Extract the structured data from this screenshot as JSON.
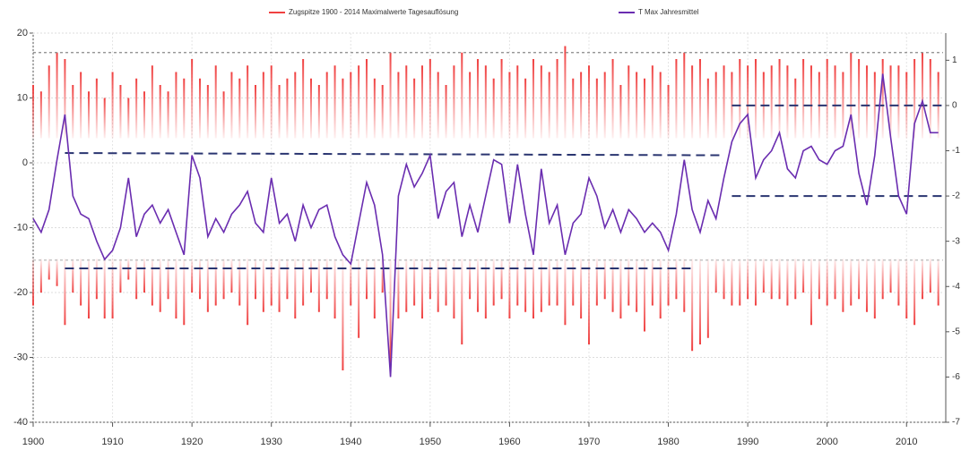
{
  "chart_data": {
    "type": "line",
    "x": [
      1900,
      1901,
      1902,
      1903,
      1904,
      1905,
      1906,
      1907,
      1908,
      1909,
      1910,
      1911,
      1912,
      1913,
      1914,
      1915,
      1916,
      1917,
      1918,
      1919,
      1920,
      1921,
      1922,
      1923,
      1924,
      1925,
      1926,
      1927,
      1928,
      1929,
      1930,
      1931,
      1932,
      1933,
      1934,
      1935,
      1936,
      1937,
      1938,
      1939,
      1940,
      1941,
      1942,
      1943,
      1944,
      1945,
      1946,
      1947,
      1948,
      1949,
      1950,
      1951,
      1952,
      1953,
      1954,
      1955,
      1956,
      1957,
      1958,
      1959,
      1960,
      1961,
      1962,
      1963,
      1964,
      1965,
      1966,
      1967,
      1968,
      1969,
      1970,
      1971,
      1972,
      1973,
      1974,
      1975,
      1976,
      1977,
      1978,
      1979,
      1980,
      1981,
      1982,
      1983,
      1984,
      1985,
      1986,
      1987,
      1988,
      1989,
      1990,
      1991,
      1992,
      1993,
      1994,
      1995,
      1996,
      1997,
      1998,
      1999,
      2000,
      2001,
      2002,
      2003,
      2004,
      2005,
      2006,
      2007,
      2008,
      2009,
      2010,
      2011,
      2012,
      2013,
      2014
    ],
    "series": [
      {
        "name": "Zugspitze 1900 - 2014 Maximalwerte Tagesauflösung",
        "color": "#f04040",
        "values": [
          12,
          11,
          15,
          17,
          16,
          12,
          14,
          11,
          13,
          10,
          14,
          12,
          10,
          13,
          11,
          15,
          12,
          11,
          14,
          13,
          16,
          13,
          12,
          15,
          11,
          14,
          13,
          15,
          12,
          14,
          15,
          12,
          13,
          14,
          16,
          13,
          12,
          14,
          15,
          13,
          14,
          15,
          16,
          13,
          12,
          17,
          14,
          15,
          13,
          15,
          16,
          14,
          12,
          15,
          17,
          14,
          16,
          15,
          13,
          16,
          14,
          15,
          13,
          16,
          15,
          14,
          16,
          18,
          13,
          14,
          15,
          13,
          14,
          16,
          12,
          15,
          14,
          13,
          15,
          14,
          12,
          16,
          17,
          15,
          16,
          13,
          14,
          15,
          14,
          16,
          15,
          16,
          14,
          15,
          16,
          15,
          13,
          16,
          15,
          14,
          16,
          15,
          14,
          17,
          16,
          15,
          14,
          16,
          15,
          15,
          14,
          16,
          17,
          16,
          14
        ],
        "lows": [
          -22,
          -20,
          -18,
          -19,
          -25,
          -20,
          -22,
          -24,
          -21,
          -24,
          -24,
          -20,
          -18,
          -21,
          -20,
          -22,
          -23,
          -21,
          -24,
          -25,
          -20,
          -21,
          -23,
          -22,
          -21,
          -20,
          -22,
          -25,
          -21,
          -23,
          -22,
          -23,
          -21,
          -24,
          -22,
          -20,
          -23,
          -21,
          -24,
          -32,
          -22,
          -27,
          -21,
          -24,
          -20,
          -31,
          -24,
          -23,
          -22,
          -24,
          -21,
          -23,
          -22,
          -24,
          -28,
          -21,
          -23,
          -24,
          -22,
          -21,
          -24,
          -22,
          -23,
          -24,
          -23,
          -22,
          -22,
          -25,
          -22,
          -24,
          -28,
          -22,
          -21,
          -23,
          -24,
          -22,
          -23,
          -26,
          -22,
          -24,
          -22,
          -21,
          -23,
          -29,
          -28,
          -27,
          -20,
          -21,
          -22,
          -22,
          -21,
          -22,
          -20,
          -21,
          -21,
          -22,
          -21,
          -20,
          -25,
          -21,
          -22,
          -21,
          -23,
          -22,
          -21,
          -23,
          -24,
          -21,
          -20,
          -22,
          -24,
          -25,
          -21,
          -20,
          -22
        ]
      },
      {
        "name": "T Max Jahresmittel",
        "color": "#6a2db0",
        "axis": "y2",
        "values": [
          -2.5,
          -2.8,
          -2.3,
          -1.2,
          -0.2,
          -2.0,
          -2.4,
          -2.5,
          -3.0,
          -3.4,
          -3.2,
          -2.7,
          -1.6,
          -2.9,
          -2.4,
          -2.2,
          -2.6,
          -2.3,
          -2.8,
          -3.3,
          -1.1,
          -1.6,
          -2.9,
          -2.5,
          -2.8,
          -2.4,
          -2.2,
          -1.9,
          -2.6,
          -2.8,
          -1.6,
          -2.6,
          -2.4,
          -3.0,
          -2.2,
          -2.7,
          -2.3,
          -2.2,
          -2.9,
          -3.3,
          -3.5,
          -2.6,
          -1.7,
          -2.2,
          -3.3,
          -6.0,
          -2.0,
          -1.3,
          -1.8,
          -1.5,
          -1.1,
          -2.5,
          -1.9,
          -1.7,
          -2.9,
          -2.2,
          -2.8,
          -2.0,
          -1.2,
          -1.3,
          -2.6,
          -1.3,
          -2.4,
          -3.3,
          -1.4,
          -2.6,
          -2.2,
          -3.3,
          -2.6,
          -2.4,
          -1.6,
          -2.0,
          -2.7,
          -2.3,
          -2.8,
          -2.3,
          -2.5,
          -2.8,
          -2.6,
          -2.8,
          -3.2,
          -2.4,
          -1.2,
          -2.3,
          -2.8,
          -2.1,
          -2.5,
          -1.6,
          -0.8,
          -0.4,
          -0.2,
          -1.6,
          -1.2,
          -1.0,
          -0.6,
          -1.4,
          -1.6,
          -1.0,
          -0.9,
          -1.2,
          -1.3,
          -1.0,
          -0.9,
          -0.2,
          -1.5,
          -2.2,
          -1.1,
          0.7,
          -0.7,
          -2.0,
          -2.4,
          -0.4,
          0.1,
          -0.6,
          -0.6
        ]
      }
    ],
    "reference_lines": [
      {
        "x": [
          1900,
          2014.6
        ],
        "values": [
          17,
          17
        ],
        "color": "#888888"
      },
      {
        "x": [
          1900,
          2014.6
        ],
        "values": [
          -15,
          -15
        ],
        "color": "#bbbbbb"
      },
      {
        "x": [
          1904,
          1987
        ],
        "values": [
          -1.05,
          -1.1
        ],
        "axis": "y2",
        "color": "#2a3570"
      },
      {
        "x": [
          1904,
          1983
        ],
        "values": [
          -3.6,
          -3.6
        ],
        "axis": "y2",
        "color": "#2a3570"
      },
      {
        "x": [
          1988,
          2014.6
        ],
        "values": [
          0,
          0
        ],
        "axis": "y2",
        "color": "#2a3570"
      },
      {
        "x": [
          1988,
          2014.6
        ],
        "values": [
          -2.0,
          -2.0
        ],
        "axis": "y2",
        "color": "#2a3570"
      }
    ],
    "xlim": [
      1900,
      2014.6
    ],
    "xticks": [
      1900,
      1910,
      1920,
      1930,
      1940,
      1950,
      1960,
      1970,
      1980,
      1990,
      2000,
      2010
    ],
    "ylim": [
      -40,
      20
    ],
    "yticks": [
      -40,
      -30,
      -20,
      -10,
      0,
      10,
      20
    ],
    "y2lim": [
      -7,
      1.6
    ],
    "y2ticks": [
      -7,
      -6,
      -5,
      -4,
      -3,
      -2,
      -1,
      0,
      1
    ],
    "grid": true
  }
}
